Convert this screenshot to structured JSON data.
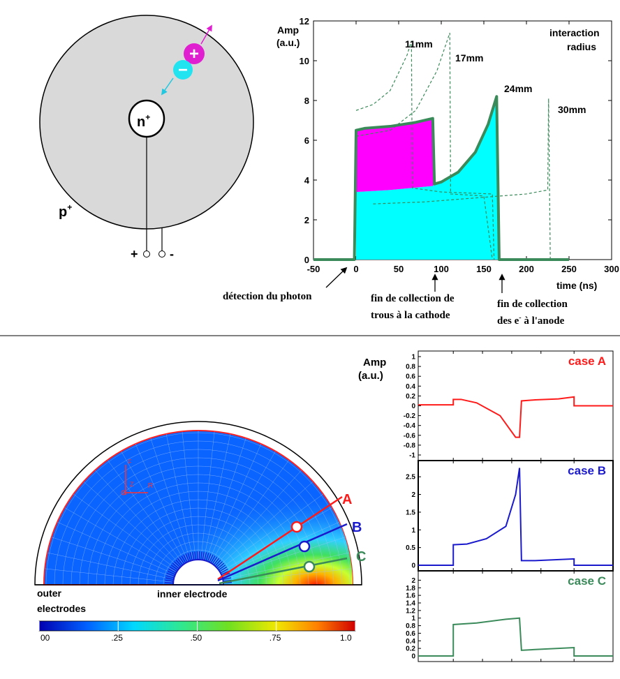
{
  "detector": {
    "electrode_inner": "n",
    "electrode_inner_sup": "+",
    "electrode_outer": "p",
    "electrode_outer_sup": "+",
    "plus_sign": "+",
    "minus_sign": "-",
    "hole_symbol": "+",
    "electron_symbol": "−",
    "hole_color": "#e020d0",
    "electron_color": "#22e3f0",
    "body_color": "#d9d9d9"
  },
  "top_chart": {
    "y_label_line1": "Amp",
    "y_label_line2": "(a.u.)",
    "x_label": "time (ns)",
    "x_ticks": [
      "-50",
      "0",
      "50",
      "100",
      "150",
      "200",
      "250",
      "300"
    ],
    "y_ticks": [
      "0",
      "2",
      "4",
      "6",
      "8",
      "10",
      "12"
    ],
    "legend_line1": "interaction",
    "legend_line2": "radius",
    "curve_labels": [
      "11mm",
      "17mm",
      "24mm",
      "30mm"
    ],
    "annotation_photon": "détection du photon",
    "annotation_holes_line1": "fin de collection de",
    "annotation_holes_line2": "trous à la cathode",
    "annotation_electrons_line1": "fin de collection",
    "annotation_electrons_line2a": "des e",
    "annotation_electrons_sup": "-",
    "annotation_electrons_line2b": " à l'anode",
    "colors": {
      "holes": "#ff00ff",
      "electrons": "#00ffff",
      "main_curve": "#3a8a5a"
    }
  },
  "field_map": {
    "label_outer_line1": "outer",
    "label_outer_line2": "electrodes",
    "label_inner": "inner electrode",
    "axis_r": "R",
    "axis_z": "Z",
    "axis_f": "F",
    "line_labels": [
      {
        "text": "A",
        "color": "#ff1a1a"
      },
      {
        "text": "B",
        "color": "#1a1acc"
      },
      {
        "text": "C",
        "color": "#3a8a5a"
      }
    ],
    "colorbar_ticks": [
      "00",
      ".25",
      ".50",
      ".75",
      "1.0"
    ]
  },
  "case_charts": {
    "y_label_line1": "Amp",
    "y_label_line2": "(a.u.)",
    "cases": [
      {
        "label": "case A",
        "color": "#ff1a1a",
        "y_ticks": [
          "1",
          "0.8",
          "0.6",
          "0.4",
          "0.2",
          "0",
          "-0.2",
          "-0.4",
          "-0.6",
          "-0.8",
          "-1"
        ]
      },
      {
        "label": "case B",
        "color": "#1a1acc",
        "y_ticks": [
          "2.5",
          "2",
          "1.5",
          "1",
          "0.5",
          "0"
        ]
      },
      {
        "label": "case C",
        "color": "#3a8a5a",
        "y_ticks": [
          "2",
          "1.8",
          "1.6",
          "1.4",
          "1.2",
          "1",
          "0.8",
          "0.6",
          "0.4",
          "0.2",
          "0"
        ]
      }
    ]
  },
  "chart_data": [
    {
      "type": "area",
      "xlabel": "time (ns)",
      "ylabel": "Amp (a.u.)",
      "xlim": [
        -50,
        300
      ],
      "ylim": [
        0,
        12
      ],
      "series": [
        {
          "name": "24mm",
          "x": [
            -50,
            -2,
            0,
            10,
            40,
            70,
            90,
            92,
            100,
            120,
            140,
            155,
            165,
            168,
            180,
            250
          ],
          "y": [
            0,
            0,
            6.5,
            6.6,
            6.7,
            6.9,
            7.1,
            3.8,
            3.9,
            4.4,
            5.4,
            6.8,
            8.2,
            0,
            0,
            0
          ]
        },
        {
          "name": "11mm",
          "x": [
            0,
            20,
            40,
            60,
            65,
            66,
            100,
            160,
            162
          ],
          "y": [
            7.5,
            7.8,
            8.5,
            10.3,
            11.0,
            3.6,
            3.4,
            3.3,
            0
          ]
        },
        {
          "name": "17mm",
          "x": [
            0,
            40,
            70,
            95,
            110,
            111,
            150,
            160
          ],
          "y": [
            6.2,
            6.5,
            7.5,
            9.5,
            11.4,
            3.3,
            3.2,
            0
          ]
        },
        {
          "name": "30mm",
          "x": [
            20,
            80,
            140,
            200,
            225,
            226,
            228
          ],
          "y": [
            2.8,
            2.9,
            3.1,
            3.3,
            3.5,
            8.1,
            0
          ]
        }
      ]
    },
    {
      "type": "line",
      "title": "case A",
      "ylim": [
        -1,
        1
      ],
      "series": [
        {
          "name": "case A",
          "x": [
            0,
            0.18,
            0.18,
            0.22,
            0.3,
            0.42,
            0.5,
            0.52,
            0.53,
            0.6,
            0.72,
            0.8,
            0.8,
            1.0
          ],
          "y": [
            0.02,
            0.02,
            0.13,
            0.13,
            0.06,
            -0.2,
            -0.64,
            -0.64,
            0.1,
            0.12,
            0.14,
            0.18,
            0.0,
            0.0
          ]
        }
      ]
    },
    {
      "type": "line",
      "title": "case B",
      "ylim": [
        0,
        2.8
      ],
      "series": [
        {
          "name": "case B",
          "x": [
            0,
            0.18,
            0.18,
            0.25,
            0.35,
            0.45,
            0.5,
            0.52,
            0.53,
            0.6,
            0.8,
            0.8,
            1.0
          ],
          "y": [
            0,
            0,
            0.58,
            0.6,
            0.75,
            1.1,
            2.0,
            2.75,
            0.13,
            0.13,
            0.18,
            0,
            0
          ]
        }
      ]
    },
    {
      "type": "line",
      "title": "case C",
      "ylim": [
        0,
        2.1
      ],
      "series": [
        {
          "name": "case C",
          "x": [
            0,
            0.18,
            0.18,
            0.3,
            0.45,
            0.52,
            0.53,
            0.6,
            0.8,
            0.8,
            1.0
          ],
          "y": [
            0,
            0,
            0.83,
            0.87,
            0.97,
            1.0,
            0.15,
            0.17,
            0.22,
            0,
            0
          ]
        }
      ]
    }
  ]
}
